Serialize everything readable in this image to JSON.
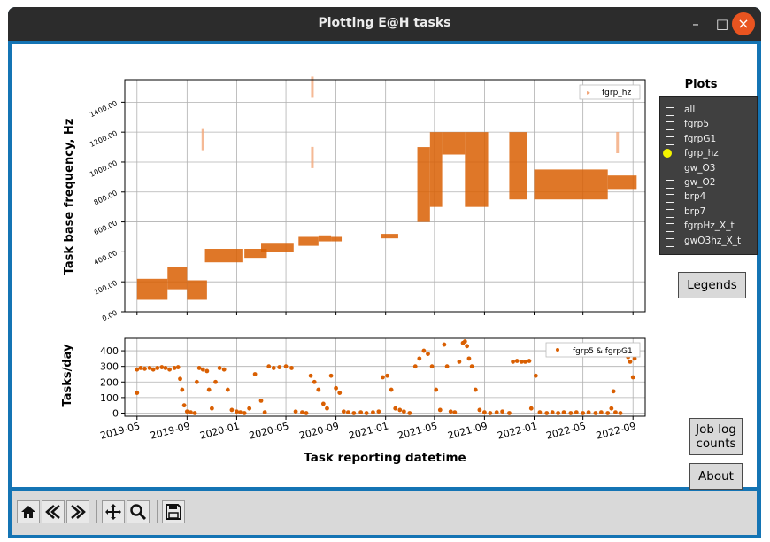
{
  "window": {
    "title": "Plotting E@H tasks",
    "controls": [
      "minimize-icon",
      "maximize-icon",
      "close-icon"
    ]
  },
  "colors": {
    "series": "#d95f02",
    "titlebar": "#2c2c2c",
    "frame": "#1474b4",
    "close": "#e95420",
    "panel": "#404040",
    "checked": "#f4f400"
  },
  "plots_panel": {
    "title": "Plots",
    "items": [
      {
        "label": "all",
        "checked": false
      },
      {
        "label": "fgrp5",
        "checked": false
      },
      {
        "label": "fgrpG1",
        "checked": false
      },
      {
        "label": "fgrp_hz",
        "checked": true
      },
      {
        "label": "gw_O3",
        "checked": false
      },
      {
        "label": "gw_O2",
        "checked": false
      },
      {
        "label": "brp4",
        "checked": false
      },
      {
        "label": "brp7",
        "checked": false
      },
      {
        "label": "fgrpHz_X_t",
        "checked": false
      },
      {
        "label": "gwO3hz_X_t",
        "checked": false
      }
    ]
  },
  "buttons": {
    "legends": "Legends",
    "job_log_line1": "Job log",
    "job_log_line2": "counts",
    "about": "About"
  },
  "toolbar": {
    "icons": [
      "home-icon",
      "back-icon",
      "forward-icon",
      "pan-icon",
      "zoom-icon",
      "save-icon"
    ]
  },
  "chart_data": [
    {
      "type": "scatter",
      "ylabel": "Task base frequency, Hz",
      "ylim": [
        0,
        1550
      ],
      "yticks": [
        "0.00",
        "200.00",
        "400.00",
        "600.00",
        "800.00",
        "1000.00",
        "1200.00",
        "1400.00"
      ],
      "legend": "fgrp_hz",
      "legend_position": "top-right",
      "grid": true,
      "series": [
        {
          "name": "fgrp_hz",
          "bands": [
            {
              "x": [
                "2019-05-01",
                "2019-07-15"
              ],
              "y": [
                80,
                220
              ]
            },
            {
              "x": [
                "2019-07-15",
                "2019-09-01"
              ],
              "y": [
                150,
                300
              ]
            },
            {
              "x": [
                "2019-09-01",
                "2019-10-20"
              ],
              "y": [
                80,
                210
              ]
            },
            {
              "x": [
                "2019-10-15",
                "2020-01-15"
              ],
              "y": [
                330,
                420
              ]
            },
            {
              "x": [
                "2020-01-20",
                "2020-03-15"
              ],
              "y": [
                360,
                420
              ]
            },
            {
              "x": [
                "2020-03-01",
                "2020-05-20"
              ],
              "y": [
                400,
                460
              ]
            },
            {
              "x": [
                "2020-06-01",
                "2020-07-20"
              ],
              "y": [
                440,
                500
              ]
            },
            {
              "x": [
                "2020-07-20",
                "2020-08-20"
              ],
              "y": [
                470,
                510
              ]
            },
            {
              "x": [
                "2020-08-20",
                "2020-09-15"
              ],
              "y": [
                470,
                500
              ]
            },
            {
              "x": [
                "2020-12-20",
                "2021-02-01"
              ],
              "y": [
                490,
                520
              ]
            },
            {
              "x": [
                "2021-03-20",
                "2021-04-20"
              ],
              "y": [
                600,
                1100
              ]
            },
            {
              "x": [
                "2021-04-20",
                "2021-05-20"
              ],
              "y": [
                700,
                1200
              ]
            },
            {
              "x": [
                "2021-05-20",
                "2021-07-15"
              ],
              "y": [
                1050,
                1200
              ]
            },
            {
              "x": [
                "2021-07-15",
                "2021-09-10"
              ],
              "y": [
                700,
                1200
              ]
            },
            {
              "x": [
                "2021-11-01",
                "2021-12-15"
              ],
              "y": [
                750,
                1200
              ]
            },
            {
              "x": [
                "2022-01-01",
                "2022-07-01"
              ],
              "y": [
                750,
                950
              ]
            },
            {
              "x": [
                "2022-07-01",
                "2022-09-10"
              ],
              "y": [
                820,
                910
              ]
            }
          ],
          "outliers": [
            {
              "x": "2019-10-10",
              "y": 1150
            },
            {
              "x": "2020-07-05",
              "y": 1500
            },
            {
              "x": "2020-07-05",
              "y": 1030
            },
            {
              "x": "2022-07-25",
              "y": 1130
            }
          ]
        }
      ]
    },
    {
      "type": "scatter",
      "ylabel": "Tasks/day",
      "xlabel": "Task reporting datetime",
      "ylim": [
        -20,
        480
      ],
      "yticks": [
        0,
        100,
        200,
        300,
        400
      ],
      "xticks": [
        "2019-05",
        "2019-09",
        "2020-01",
        "2020-05",
        "2020-09",
        "2021-01",
        "2021-05",
        "2021-09",
        "2022-01",
        "2022-05",
        "2022-09"
      ],
      "xlim": [
        "2019-04-01",
        "2022-10-01"
      ],
      "legend": "fgrp5 & fgrpG1",
      "legend_position": "top-right",
      "grid": true,
      "series": [
        {
          "name": "fgrp5 & fgrpG1",
          "points": [
            [
              "2019-05-01",
              130
            ],
            [
              "2019-05-01",
              280
            ],
            [
              "2019-05-10",
              290
            ],
            [
              "2019-05-20",
              285
            ],
            [
              "2019-06-01",
              290
            ],
            [
              "2019-06-10",
              280
            ],
            [
              "2019-06-20",
              290
            ],
            [
              "2019-07-01",
              295
            ],
            [
              "2019-07-10",
              290
            ],
            [
              "2019-07-20",
              280
            ],
            [
              "2019-08-01",
              290
            ],
            [
              "2019-08-10",
              295
            ],
            [
              "2019-08-15",
              220
            ],
            [
              "2019-08-20",
              150
            ],
            [
              "2019-08-25",
              50
            ],
            [
              "2019-09-01",
              10
            ],
            [
              "2019-09-10",
              5
            ],
            [
              "2019-09-20",
              0
            ],
            [
              "2019-09-25",
              200
            ],
            [
              "2019-10-01",
              290
            ],
            [
              "2019-10-10",
              280
            ],
            [
              "2019-10-20",
              270
            ],
            [
              "2019-10-25",
              150
            ],
            [
              "2019-11-01",
              30
            ],
            [
              "2019-11-10",
              200
            ],
            [
              "2019-11-20",
              290
            ],
            [
              "2019-12-01",
              280
            ],
            [
              "2019-12-10",
              150
            ],
            [
              "2019-12-20",
              20
            ],
            [
              "2020-01-01",
              10
            ],
            [
              "2020-01-10",
              5
            ],
            [
              "2020-01-20",
              0
            ],
            [
              "2020-02-01",
              30
            ],
            [
              "2020-02-15",
              250
            ],
            [
              "2020-03-01",
              80
            ],
            [
              "2020-03-10",
              5
            ],
            [
              "2020-03-20",
              300
            ],
            [
              "2020-04-01",
              290
            ],
            [
              "2020-04-15",
              295
            ],
            [
              "2020-05-01",
              300
            ],
            [
              "2020-05-15",
              290
            ],
            [
              "2020-05-25",
              10
            ],
            [
              "2020-06-10",
              5
            ],
            [
              "2020-06-20",
              0
            ],
            [
              "2020-07-01",
              240
            ],
            [
              "2020-07-10",
              200
            ],
            [
              "2020-07-20",
              150
            ],
            [
              "2020-08-01",
              60
            ],
            [
              "2020-08-10",
              30
            ],
            [
              "2020-08-20",
              240
            ],
            [
              "2020-09-01",
              160
            ],
            [
              "2020-09-10",
              130
            ],
            [
              "2020-09-20",
              10
            ],
            [
              "2020-10-01",
              5
            ],
            [
              "2020-10-15",
              0
            ],
            [
              "2020-11-01",
              5
            ],
            [
              "2020-11-15",
              0
            ],
            [
              "2020-12-01",
              5
            ],
            [
              "2020-12-15",
              10
            ],
            [
              "2020-12-25",
              230
            ],
            [
              "2021-01-05",
              240
            ],
            [
              "2021-01-15",
              150
            ],
            [
              "2021-01-25",
              30
            ],
            [
              "2021-02-05",
              20
            ],
            [
              "2021-02-15",
              10
            ],
            [
              "2021-03-01",
              0
            ],
            [
              "2021-03-15",
              300
            ],
            [
              "2021-03-25",
              350
            ],
            [
              "2021-04-05",
              400
            ],
            [
              "2021-04-15",
              380
            ],
            [
              "2021-04-25",
              300
            ],
            [
              "2021-05-05",
              150
            ],
            [
              "2021-05-15",
              20
            ],
            [
              "2021-05-25",
              440
            ],
            [
              "2021-06-01",
              300
            ],
            [
              "2021-06-10",
              10
            ],
            [
              "2021-06-20",
              5
            ],
            [
              "2021-07-01",
              330
            ],
            [
              "2021-07-10",
              450
            ],
            [
              "2021-07-15",
              460
            ],
            [
              "2021-07-20",
              430
            ],
            [
              "2021-07-25",
              350
            ],
            [
              "2021-08-01",
              300
            ],
            [
              "2021-08-10",
              150
            ],
            [
              "2021-08-20",
              20
            ],
            [
              "2021-09-01",
              5
            ],
            [
              "2021-09-15",
              0
            ],
            [
              "2021-10-01",
              5
            ],
            [
              "2021-10-15",
              10
            ],
            [
              "2021-11-01",
              0
            ],
            [
              "2021-11-10",
              330
            ],
            [
              "2021-11-20",
              335
            ],
            [
              "2021-12-01",
              330
            ],
            [
              "2021-12-10",
              330
            ],
            [
              "2021-12-20",
              335
            ],
            [
              "2021-12-25",
              30
            ],
            [
              "2022-01-05",
              240
            ],
            [
              "2022-01-15",
              5
            ],
            [
              "2022-02-01",
              0
            ],
            [
              "2022-02-15",
              5
            ],
            [
              "2022-03-01",
              0
            ],
            [
              "2022-03-15",
              5
            ],
            [
              "2022-04-01",
              0
            ],
            [
              "2022-04-15",
              5
            ],
            [
              "2022-05-01",
              0
            ],
            [
              "2022-05-15",
              5
            ],
            [
              "2022-06-01",
              0
            ],
            [
              "2022-06-15",
              5
            ],
            [
              "2022-07-01",
              0
            ],
            [
              "2022-07-10",
              30
            ],
            [
              "2022-07-15",
              140
            ],
            [
              "2022-07-20",
              5
            ],
            [
              "2022-08-01",
              0
            ],
            [
              "2022-08-15",
              400
            ],
            [
              "2022-08-20",
              360
            ],
            [
              "2022-08-25",
              330
            ],
            [
              "2022-09-01",
              230
            ],
            [
              "2022-09-05",
              350
            ]
          ]
        }
      ]
    }
  ]
}
